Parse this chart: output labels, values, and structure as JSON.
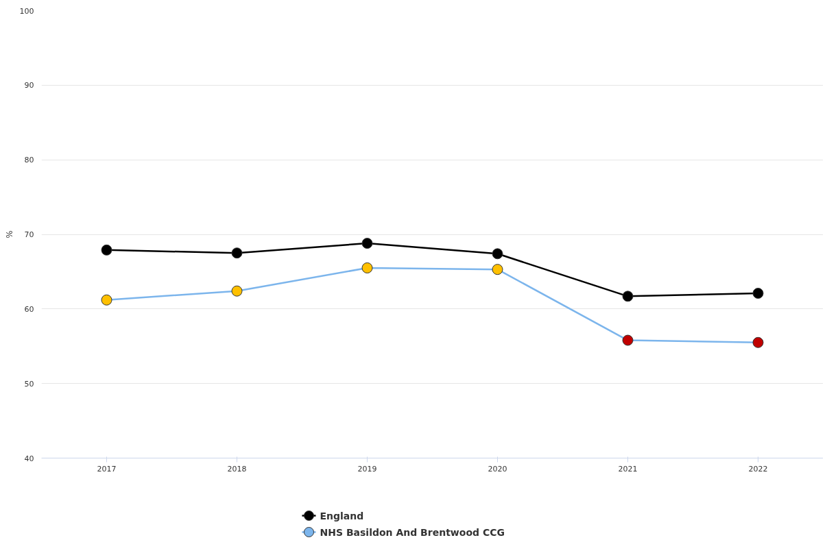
{
  "chart_data": {
    "type": "line",
    "ylabel": "%",
    "categories": [
      "2017",
      "2018",
      "2019",
      "2020",
      "2021",
      "2022"
    ],
    "series": [
      {
        "name": "England",
        "color": "#000000",
        "colors": [
          "#000000",
          "#000000",
          "#000000",
          "#000000",
          "#000000",
          "#000000"
        ],
        "values": [
          67.9,
          67.5,
          68.8,
          67.4,
          61.7,
          62.1
        ]
      },
      {
        "name": "NHS Basildon And Brentwood CCG",
        "color": "#7cb5ec",
        "colors": [
          "#ffc000",
          "#ffc000",
          "#ffc000",
          "#ffc000",
          "#c00000",
          "#c00000"
        ],
        "values": [
          61.2,
          62.4,
          65.5,
          65.3,
          55.8,
          55.5
        ]
      }
    ],
    "ylim": [
      40,
      100
    ],
    "yticks": [
      40,
      50,
      60,
      70,
      80,
      90,
      100
    ],
    "grid": "y",
    "legend": "bottom",
    "marker": "circle",
    "line_style": "solid"
  }
}
